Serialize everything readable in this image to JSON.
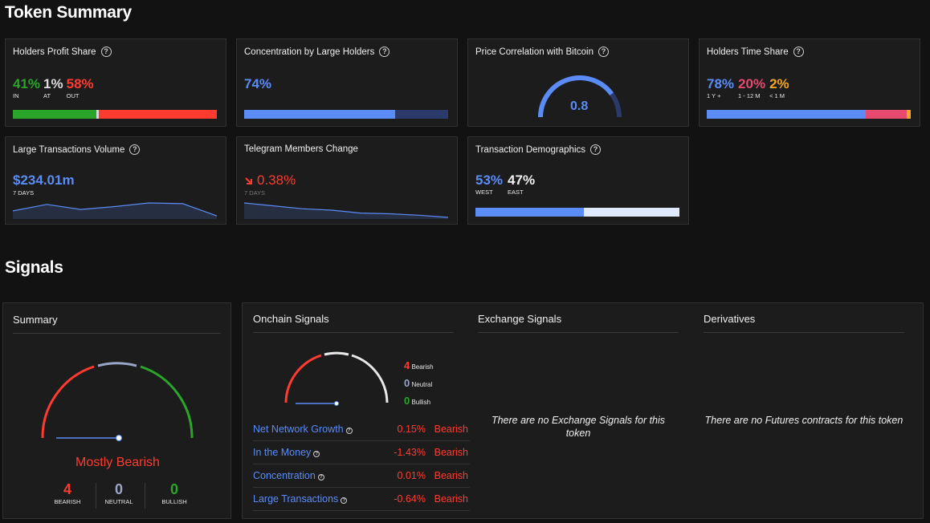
{
  "token_summary": {
    "title": "Token Summary",
    "holders_profit_share": {
      "title": "Holders Profit Share",
      "in_value": "41%",
      "in_label": "IN",
      "at_value": "1%",
      "at_label": "AT",
      "out_value": "58%",
      "out_label": "OUT",
      "in_share": 41,
      "at_share": 1,
      "out_share": 58
    },
    "concentration": {
      "title": "Concentration by Large Holders",
      "value": "74%",
      "share": 74
    },
    "btc_correlation": {
      "title": "Price Correlation with Bitcoin",
      "value": "0.8",
      "fraction": 0.8
    },
    "holders_time_share": {
      "title": "Holders Time Share",
      "long_value": "78%",
      "long_label": "1 Y +",
      "mid_value": "20%",
      "mid_label": "1 - 12 M",
      "short_value": "2%",
      "short_label": "< 1 M",
      "long_share": 78,
      "mid_share": 20,
      "short_share": 2
    },
    "large_tx_volume": {
      "title": "Large Transactions Volume",
      "value": "$234.01m",
      "period": "7 DAYS",
      "sparkline": [
        0.45,
        0.9,
        0.55,
        0.75,
        1.0,
        0.95,
        0.1
      ]
    },
    "telegram_change": {
      "title": "Telegram Members Change",
      "value": "0.38%",
      "period": "7 DAYS",
      "sparkline": [
        1.0,
        0.8,
        0.6,
        0.5,
        0.3,
        0.25,
        0.15,
        0.0
      ]
    },
    "tx_demographics": {
      "title": "Transaction Demographics",
      "west_value": "53%",
      "west_label": "WEST",
      "east_value": "47%",
      "east_label": "EAST",
      "west_share": 53,
      "east_share": 47
    }
  },
  "signals": {
    "title": "Signals",
    "summary": {
      "title": "Summary",
      "verdict": "Mostly Bearish",
      "bearish_count": "4",
      "bearish_label": "BEARISH",
      "neutral_count": "0",
      "neutral_label": "NEUTRAL",
      "bullish_count": "0",
      "bullish_label": "BULLISH"
    },
    "onchain": {
      "title": "Onchain Signals",
      "legend": {
        "bearish_count": "4",
        "bearish_label": "Bearish",
        "neutral_count": "0",
        "neutral_label": "Neutral",
        "bullish_count": "0",
        "bullish_label": "Bullish"
      },
      "rows": [
        {
          "name": "Net Network Growth",
          "value": "0.15%",
          "label": "Bearish"
        },
        {
          "name": "In the Money",
          "value": "-1.43%",
          "label": "Bearish"
        },
        {
          "name": "Concentration",
          "value": "0.01%",
          "label": "Bearish"
        },
        {
          "name": "Large Transactions",
          "value": "-0.64%",
          "label": "Bearish"
        }
      ]
    },
    "exchange": {
      "title": "Exchange Signals",
      "empty_message": "There are no Exchange Signals for this token"
    },
    "derivatives": {
      "title": "Derivatives",
      "empty_message": "There are no Futures contracts for this token"
    }
  },
  "colors": {
    "green": "#2aa52a",
    "red": "#ff3b30",
    "blue": "#5b8cf6",
    "pink": "#e8496f",
    "orange": "#f5a623",
    "navy": "#2b3a6b",
    "light": "#dfe9fb"
  }
}
